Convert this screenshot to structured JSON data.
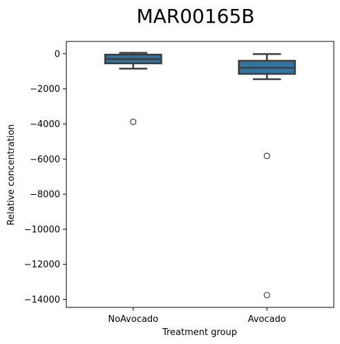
{
  "chart_data": {
    "type": "box",
    "title": "MAR00165B",
    "xlabel": "Treatment group",
    "ylabel": "Relative concentration",
    "categories": [
      "NoAvocado",
      "Avocado"
    ],
    "ylim": [
      -14450,
      700
    ],
    "yticks": [
      0,
      -2000,
      -4000,
      -6000,
      -8000,
      -10000,
      -12000,
      -14000
    ],
    "ytick_labels": [
      "0",
      "−2000",
      "−4000",
      "−6000",
      "−8000",
      "−10000",
      "−12000",
      "−14000"
    ],
    "grid": false,
    "boxes": [
      {
        "category": "NoAvocado",
        "whisker_low": -850,
        "q1": -550,
        "median": -300,
        "q3": -50,
        "whisker_high": 50,
        "outliers": [
          -3880
        ]
      },
      {
        "category": "Avocado",
        "whisker_low": -1450,
        "q1": -1150,
        "median": -800,
        "q3": -400,
        "whisker_high": -20,
        "outliers": [
          -5820,
          -13750
        ]
      }
    ],
    "colors": {
      "box_fill": "#3274a1",
      "box_edge": "#3d3d3d"
    }
  }
}
